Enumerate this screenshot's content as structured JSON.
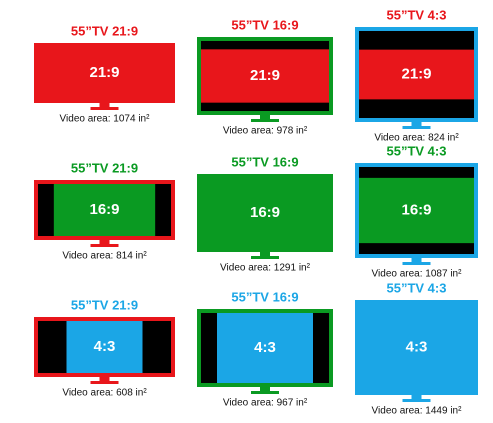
{
  "tvs": [
    {
      "title": "55”TV 21:9",
      "screen": "21:9",
      "area": "Video area: 1074 in²"
    },
    {
      "title": "55”TV 16:9",
      "screen": "21:9",
      "area": "Video area: 978 in²"
    },
    {
      "title": "55”TV 4:3",
      "screen": "21:9",
      "area": "Video area: 824 in²"
    },
    {
      "title": "55”TV 21:9",
      "screen": "16:9",
      "area": "Video area: 814 in²"
    },
    {
      "title": "55”TV 16:9",
      "screen": "16:9",
      "area": "Video area: 1291 in²"
    },
    {
      "title": "55”TV 4:3",
      "screen": "16:9",
      "area": "Video area: 1087 in²"
    },
    {
      "title": "55”TV 21:9",
      "screen": "4:3",
      "area": "Video area: 608 in²"
    },
    {
      "title": "55”TV 16:9",
      "screen": "4:3",
      "area": "Video area: 967 in²"
    },
    {
      "title": "55”TV 4:3",
      "screen": "4:3",
      "area": "Video area: 1449 in²"
    }
  ]
}
